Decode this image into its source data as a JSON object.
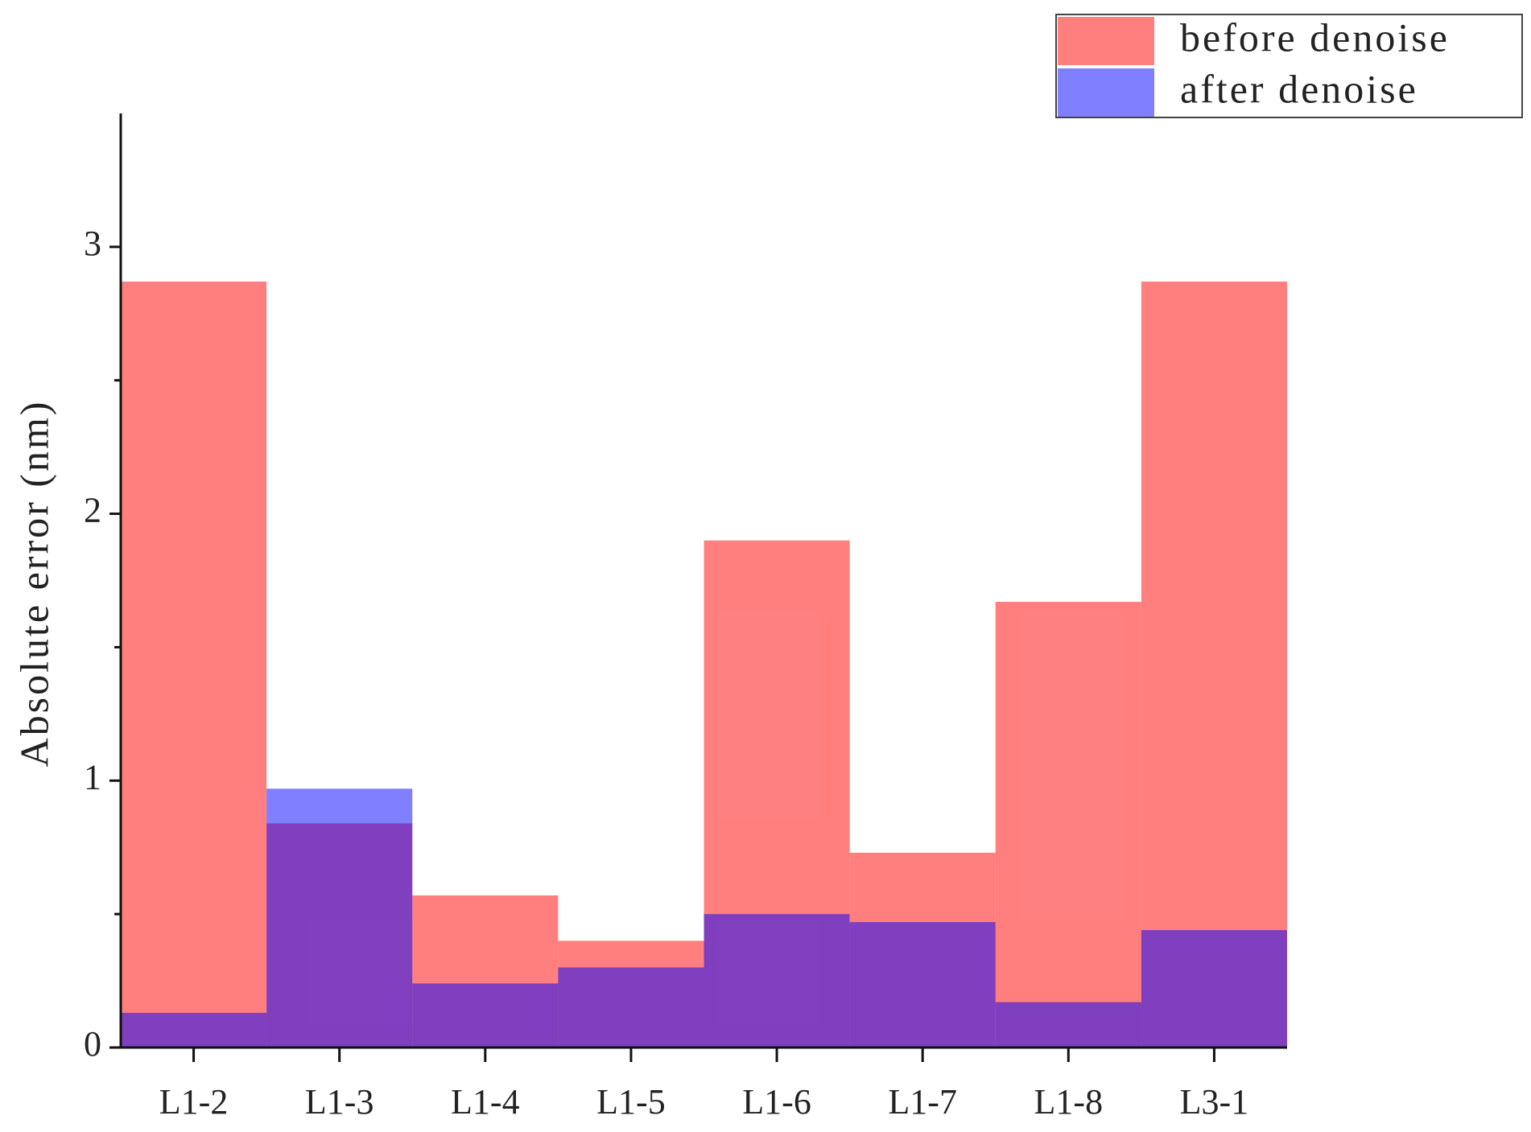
{
  "chart_data": {
    "type": "bar",
    "overlap": true,
    "y_label": "Absolute error (nm)",
    "categories": [
      "L1-2",
      "L1-3",
      "L1-4",
      "L1-5",
      "L1-6",
      "L1-7",
      "L1-8",
      "L3-1"
    ],
    "series": [
      {
        "name": "before denoise",
        "color": "#ff0000",
        "values": [
          2.87,
          0.84,
          0.57,
          0.4,
          1.9,
          0.73,
          1.67,
          2.87
        ]
      },
      {
        "name": "after denoise",
        "color": "#0000ff",
        "values": [
          0.13,
          0.97,
          0.24,
          0.3,
          0.5,
          0.47,
          0.17,
          0.44
        ]
      }
    ],
    "ylim": [
      0,
      3.5
    ],
    "yticks": [
      0,
      1,
      2,
      3
    ],
    "y_minor_ticks": [
      0.5,
      1.5,
      2.5
    ],
    "legend_position": "upper right"
  }
}
